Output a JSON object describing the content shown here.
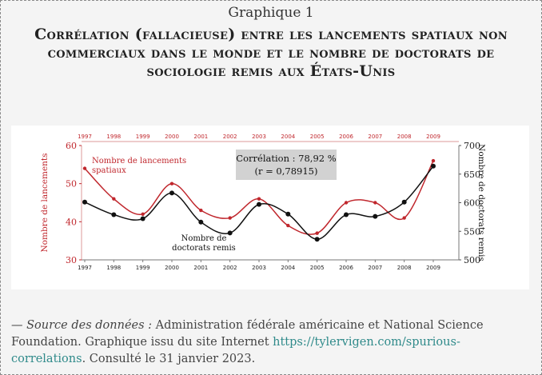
{
  "figure": {
    "kicker": "Graphique 1",
    "title": "Corrélation (fallacieuse) entre les lancements spatiaux non commerciaux dans le monde et le nombre de doctorats de sociologie remis aux États-Unis",
    "source_lead": "— Source des données :",
    "source_text": " Administration fédérale américaine et National Science Foundation. Graphique issu du site Internet ",
    "source_link": "https://tylervigen.com/spurious-correlations",
    "source_after": ". Consulté le 31 janvier 2023."
  },
  "chart_data": {
    "type": "line",
    "categories": [
      "1997",
      "1998",
      "1999",
      "2000",
      "2001",
      "2002",
      "2003",
      "2004",
      "2005",
      "2006",
      "2007",
      "2008",
      "2009"
    ],
    "y_left": {
      "label": "Nombre de lancements",
      "min": 30,
      "max": 60,
      "ticks": [
        "30",
        "40",
        "50",
        "60"
      ]
    },
    "y_right": {
      "label": "Nombre de doctorats remis",
      "min": 500,
      "max": 700,
      "ticks": [
        "500",
        "550",
        "600",
        "650",
        "700"
      ]
    },
    "series": [
      {
        "name": "Nombre de lancements spatiaux",
        "label_line1": "Nombre de lancements",
        "label_line2": "spatiaux",
        "axis": "left",
        "color": "#c0272d",
        "values": [
          54,
          46,
          42,
          50,
          43,
          41,
          46,
          39,
          37,
          45,
          45,
          41,
          56
        ]
      },
      {
        "name": "Nombre de doctorats remis",
        "label_line1": "Nombre de",
        "label_line2": "doctorats remis",
        "axis": "right",
        "color": "#111111",
        "values": [
          601,
          579,
          572,
          617,
          566,
          547,
          597,
          580,
          536,
          579,
          576,
          601,
          664
        ]
      }
    ],
    "annotation": {
      "line1": "Corrélation : 78,92 %",
      "line2": "(r = 0,78915)"
    },
    "grid": false
  }
}
